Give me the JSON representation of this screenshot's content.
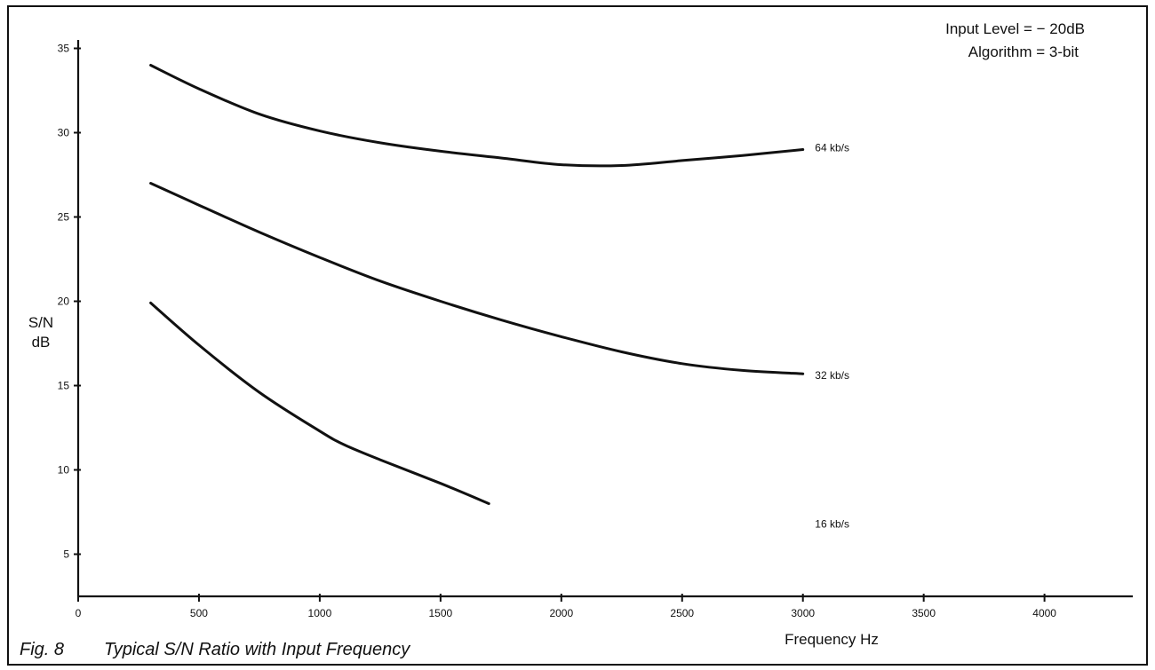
{
  "chart_data": {
    "type": "line",
    "title": "",
    "xlabel": "Frequency Hz",
    "ylabel_line1": "S/N",
    "ylabel_line2": "dB",
    "xlim": [
      0,
      4200
    ],
    "ylim": [
      2.5,
      35.5
    ],
    "x_ticks": [
      0,
      500,
      1000,
      1500,
      2000,
      2500,
      3000,
      3500,
      4000
    ],
    "y_ticks": [
      5,
      10,
      15,
      20,
      25,
      30,
      35
    ],
    "grid": false,
    "annotations": [
      "Input Level = − 20dB",
      "Algorithm = 3-bit"
    ],
    "caption_fig": "Fig. 8",
    "caption_text": "Typical S/N Ratio with Input Frequency",
    "series": [
      {
        "name": "64 kb/s",
        "x": [
          300,
          500,
          750,
          1000,
          1250,
          1500,
          1750,
          2000,
          2250,
          2500,
          2750,
          3000
        ],
        "y": [
          34,
          32.6,
          31.1,
          30.1,
          29.4,
          28.9,
          28.5,
          28.1,
          28.05,
          28.35,
          28.65,
          29
        ]
      },
      {
        "name": "32 kb/s",
        "x": [
          300,
          500,
          750,
          1000,
          1250,
          1500,
          1750,
          2000,
          2250,
          2500,
          2750,
          3000
        ],
        "y": [
          27,
          25.7,
          24.1,
          22.6,
          21.2,
          20,
          18.9,
          17.9,
          17,
          16.3,
          15.9,
          15.7
        ]
      },
      {
        "name": "16 kb/s",
        "x": [
          300,
          500,
          750,
          1000,
          1100,
          1250,
          1500,
          1700
        ],
        "y": [
          19.9,
          17.4,
          14.6,
          12.3,
          11.5,
          10.6,
          9.2,
          8
        ]
      }
    ]
  }
}
